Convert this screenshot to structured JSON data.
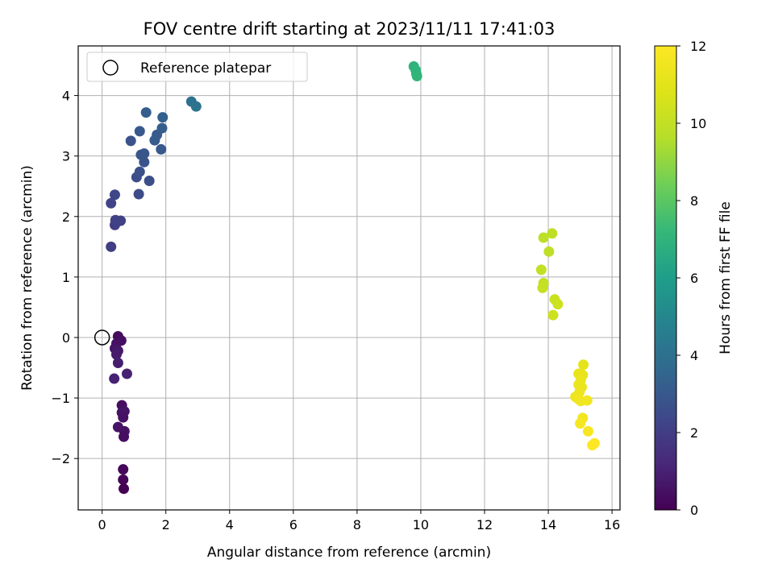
{
  "chart_data": {
    "type": "scatter",
    "title": "FOV centre drift starting at 2023/11/11 17:41:03",
    "xlabel": "Angular distance from reference (arcmin)",
    "ylabel": "Rotation from reference (arcmin)",
    "xlim": [
      -0.75,
      16.25
    ],
    "ylim": [
      -2.85,
      4.82
    ],
    "xticks": [
      0,
      2,
      4,
      6,
      8,
      10,
      12,
      14,
      16
    ],
    "yticks": [
      -2,
      -1,
      0,
      1,
      2,
      3,
      4
    ],
    "grid": true,
    "legend": {
      "position": "top-left",
      "entries": [
        "Reference platepar"
      ]
    },
    "reference_point": {
      "x": 0,
      "y": 0
    },
    "colorbar": {
      "label": "Hours from first FF file",
      "colormap": "viridis",
      "range": [
        0,
        12
      ],
      "ticks": [
        0,
        2,
        4,
        6,
        8,
        10,
        12
      ]
    },
    "points": [
      {
        "x": 0.5,
        "y": 0.02,
        "h": 0.3
      },
      {
        "x": 0.6,
        "y": -0.05,
        "h": 0.4
      },
      {
        "x": 0.45,
        "y": -0.1,
        "h": 0.5
      },
      {
        "x": 0.4,
        "y": -0.18,
        "h": 0.6
      },
      {
        "x": 0.5,
        "y": -0.22,
        "h": 0.7
      },
      {
        "x": 0.45,
        "y": -0.28,
        "h": 0.8
      },
      {
        "x": 0.5,
        "y": -0.42,
        "h": 0.9
      },
      {
        "x": 0.78,
        "y": -0.6,
        "h": 1.0
      },
      {
        "x": 0.38,
        "y": -0.68,
        "h": 1.0
      },
      {
        "x": 0.62,
        "y": -1.12,
        "h": 0.4
      },
      {
        "x": 0.62,
        "y": -1.24,
        "h": 0.5
      },
      {
        "x": 0.7,
        "y": -1.22,
        "h": 0.6
      },
      {
        "x": 0.66,
        "y": -1.32,
        "h": 0.5
      },
      {
        "x": 0.5,
        "y": -1.48,
        "h": 0.6
      },
      {
        "x": 0.7,
        "y": -1.55,
        "h": 0.5
      },
      {
        "x": 0.68,
        "y": -1.64,
        "h": 0.4
      },
      {
        "x": 0.66,
        "y": -2.18,
        "h": 0.2
      },
      {
        "x": 0.66,
        "y": -2.35,
        "h": 0.1
      },
      {
        "x": 0.68,
        "y": -2.5,
        "h": 0.0
      },
      {
        "x": 0.28,
        "y": 1.5,
        "h": 2.0
      },
      {
        "x": 0.4,
        "y": 1.86,
        "h": 2.0
      },
      {
        "x": 0.42,
        "y": 1.94,
        "h": 2.1
      },
      {
        "x": 0.58,
        "y": 1.93,
        "h": 2.1
      },
      {
        "x": 0.28,
        "y": 2.22,
        "h": 2.2
      },
      {
        "x": 0.4,
        "y": 2.36,
        "h": 2.3
      },
      {
        "x": 1.15,
        "y": 2.37,
        "h": 2.5
      },
      {
        "x": 1.48,
        "y": 2.59,
        "h": 2.6
      },
      {
        "x": 1.08,
        "y": 2.65,
        "h": 2.6
      },
      {
        "x": 1.18,
        "y": 2.74,
        "h": 2.7
      },
      {
        "x": 1.32,
        "y": 2.9,
        "h": 2.8
      },
      {
        "x": 1.22,
        "y": 3.02,
        "h": 2.9
      },
      {
        "x": 1.32,
        "y": 3.04,
        "h": 2.9
      },
      {
        "x": 1.85,
        "y": 3.11,
        "h": 3.0
      },
      {
        "x": 0.9,
        "y": 3.25,
        "h": 2.8
      },
      {
        "x": 1.65,
        "y": 3.26,
        "h": 3.1
      },
      {
        "x": 1.72,
        "y": 3.35,
        "h": 3.1
      },
      {
        "x": 1.18,
        "y": 3.41,
        "h": 3.0
      },
      {
        "x": 1.88,
        "y": 3.46,
        "h": 3.2
      },
      {
        "x": 1.9,
        "y": 3.64,
        "h": 3.3
      },
      {
        "x": 1.38,
        "y": 3.72,
        "h": 3.2
      },
      {
        "x": 2.8,
        "y": 3.9,
        "h": 4.0
      },
      {
        "x": 2.95,
        "y": 3.82,
        "h": 4.1
      },
      {
        "x": 9.78,
        "y": 4.48,
        "h": 6.9
      },
      {
        "x": 9.84,
        "y": 4.42,
        "h": 7.0
      },
      {
        "x": 9.86,
        "y": 4.36,
        "h": 7.0
      },
      {
        "x": 9.88,
        "y": 4.32,
        "h": 7.1
      },
      {
        "x": 13.85,
        "y": 1.65,
        "h": 9.8
      },
      {
        "x": 14.12,
        "y": 1.72,
        "h": 9.9
      },
      {
        "x": 14.02,
        "y": 1.42,
        "h": 9.9
      },
      {
        "x": 13.78,
        "y": 1.12,
        "h": 10.0
      },
      {
        "x": 13.85,
        "y": 0.9,
        "h": 10.0
      },
      {
        "x": 13.82,
        "y": 0.82,
        "h": 10.1
      },
      {
        "x": 14.2,
        "y": 0.63,
        "h": 10.2
      },
      {
        "x": 14.3,
        "y": 0.55,
        "h": 10.3
      },
      {
        "x": 14.15,
        "y": 0.37,
        "h": 10.3
      },
      {
        "x": 15.1,
        "y": -0.45,
        "h": 11.1
      },
      {
        "x": 14.95,
        "y": -0.6,
        "h": 11.2
      },
      {
        "x": 15.08,
        "y": -0.62,
        "h": 11.2
      },
      {
        "x": 15.02,
        "y": -0.7,
        "h": 11.3
      },
      {
        "x": 14.95,
        "y": -0.78,
        "h": 11.3
      },
      {
        "x": 15.05,
        "y": -0.82,
        "h": 11.3
      },
      {
        "x": 14.98,
        "y": -0.9,
        "h": 11.4
      },
      {
        "x": 14.85,
        "y": -0.98,
        "h": 11.4
      },
      {
        "x": 14.95,
        "y": -1.02,
        "h": 11.5
      },
      {
        "x": 15.02,
        "y": -1.05,
        "h": 11.5
      },
      {
        "x": 15.22,
        "y": -1.04,
        "h": 11.6
      },
      {
        "x": 15.08,
        "y": -1.33,
        "h": 11.6
      },
      {
        "x": 15.0,
        "y": -1.42,
        "h": 11.7
      },
      {
        "x": 15.25,
        "y": -1.55,
        "h": 11.8
      },
      {
        "x": 15.45,
        "y": -1.75,
        "h": 11.9
      },
      {
        "x": 15.38,
        "y": -1.78,
        "h": 12.0
      }
    ]
  }
}
